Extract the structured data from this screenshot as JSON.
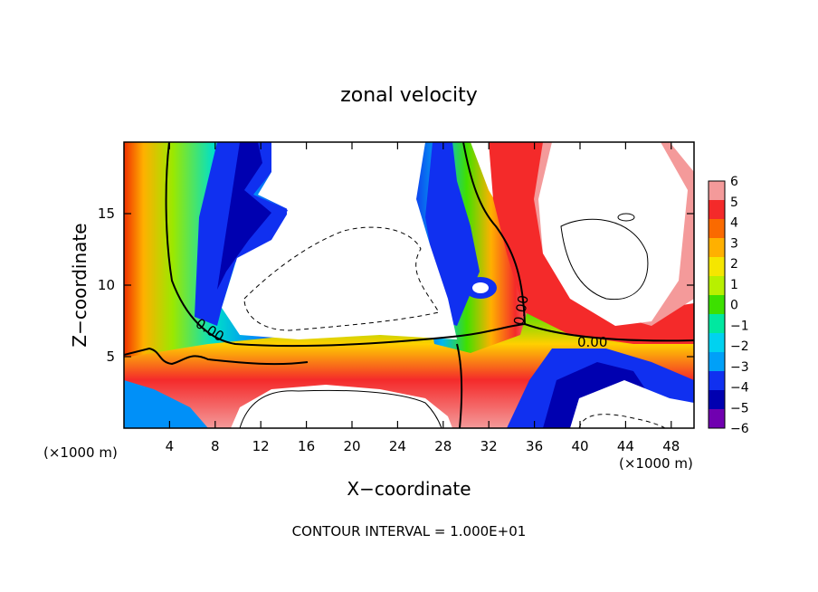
{
  "chart_data": {
    "type": "heatmap",
    "title": "zonal velocity",
    "xlabel": "X−coordinate",
    "ylabel": "Z−coordinate",
    "x_unit_left": "(×1000 m)",
    "x_unit_right": "(×1000 m)",
    "footer": "CONTOUR INTERVAL = 1.000E+01",
    "xlim": [
      0,
      50
    ],
    "ylim": [
      0,
      20
    ],
    "x_ticks": [
      4,
      8,
      12,
      16,
      20,
      24,
      28,
      32,
      36,
      40,
      44,
      48
    ],
    "y_ticks": [
      5,
      10,
      15
    ],
    "x_tick_labels": [
      "4",
      "8",
      "12",
      "16",
      "20",
      "24",
      "28",
      "32",
      "36",
      "40",
      "44",
      "48"
    ],
    "y_tick_labels": [
      "5",
      "10",
      "15"
    ],
    "colorbar": {
      "range": [
        -6,
        6
      ],
      "labels": [
        "6",
        "5",
        "4",
        "3",
        "2",
        "1",
        "0",
        "−1",
        "−2",
        "−3",
        "−4",
        "−5",
        "−6"
      ],
      "colors": [
        "#f49a9a",
        "#f42a2a",
        "#fa6a00",
        "#ffb000",
        "#f5e600",
        "#b8f000",
        "#3de000",
        "#00e8a0",
        "#00d2f0",
        "#00a0f8",
        "#1030f0",
        "#0000b0",
        "#7000b0"
      ]
    },
    "contour_labels": [
      "0.00",
      "0.00",
      "0.00"
    ],
    "grid": false,
    "legend": "colorbar-right"
  }
}
